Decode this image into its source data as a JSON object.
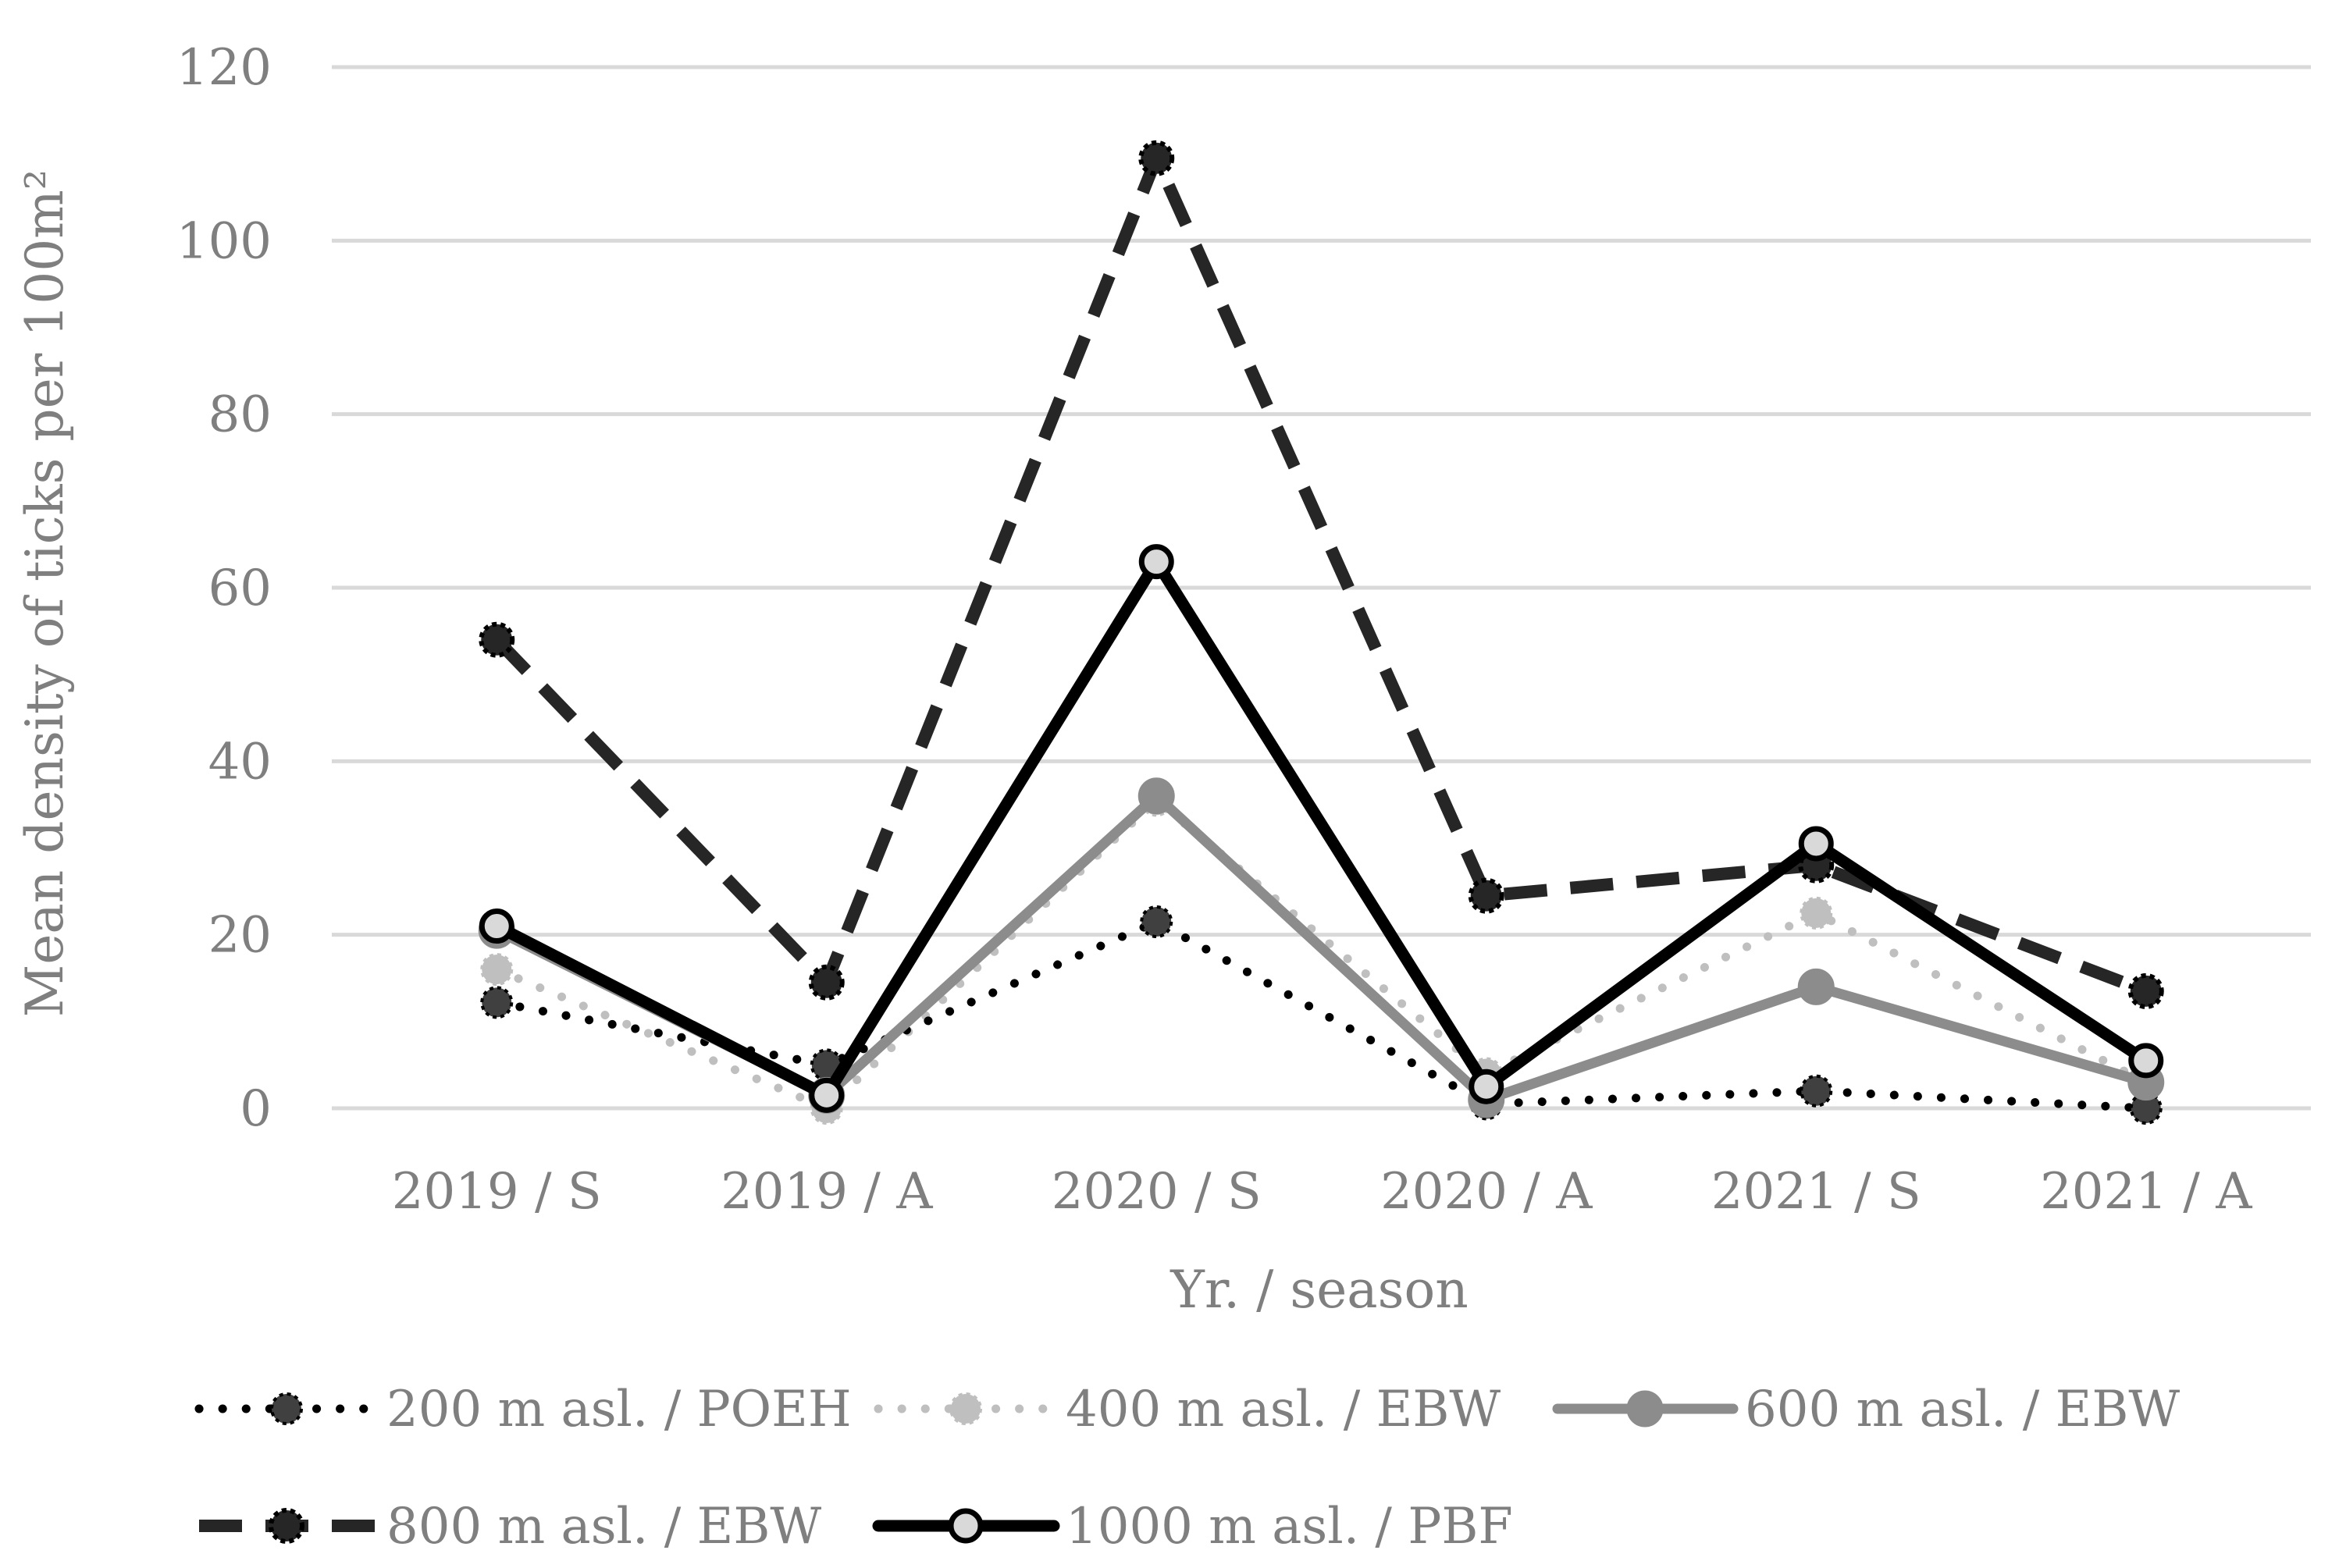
{
  "chart_data": {
    "type": "line",
    "title": "",
    "xlabel": "Yr. / season",
    "ylabel": "Mean density of ticks per 100m²",
    "ylim": [
      0,
      120
    ],
    "yticks": [
      0,
      20,
      40,
      60,
      80,
      100,
      120
    ],
    "grid": true,
    "legend_position": "bottom",
    "categories": [
      "2019 / S",
      "2019 / A",
      "2020 / S",
      "2020 / A",
      "2021 / S",
      "2021 / A"
    ],
    "series": [
      {
        "name": "200 m asl. / POEH",
        "values": [
          12.2,
          5.0,
          21.5,
          0.5,
          2.0,
          0.0
        ],
        "style": "dotted",
        "line_color": "#000000",
        "marker_fill": "#404040",
        "marker_stroke": "#000000"
      },
      {
        "name": "400 m asl. / EBW",
        "values": [
          16.0,
          0.0,
          35.5,
          4.0,
          22.5,
          3.0
        ],
        "style": "dotted",
        "line_color": "#bfbfbf",
        "marker_fill": "#bfbfbf",
        "marker_stroke": "#bfbfbf"
      },
      {
        "name": "600 m asl. / EBW",
        "values": [
          20.5,
          1.5,
          36.0,
          1.0,
          14.0,
          3.0
        ],
        "style": "solid",
        "line_color": "#8c8c8c",
        "marker_fill": "#8c8c8c",
        "marker_stroke": "#8c8c8c"
      },
      {
        "name": "800 m asl. / EBW",
        "values": [
          54.0,
          14.5,
          109.5,
          24.5,
          28.0,
          13.5
        ],
        "style": "dashed",
        "line_color": "#262626",
        "marker_fill": "#262626",
        "marker_stroke": "#000000"
      },
      {
        "name": "1000 m asl. / PBF",
        "values": [
          21.0,
          1.5,
          63.0,
          2.5,
          30.5,
          5.5
        ],
        "style": "solid",
        "line_color": "#000000",
        "marker_fill": "#d9d9d9",
        "marker_stroke": "#000000"
      }
    ]
  }
}
